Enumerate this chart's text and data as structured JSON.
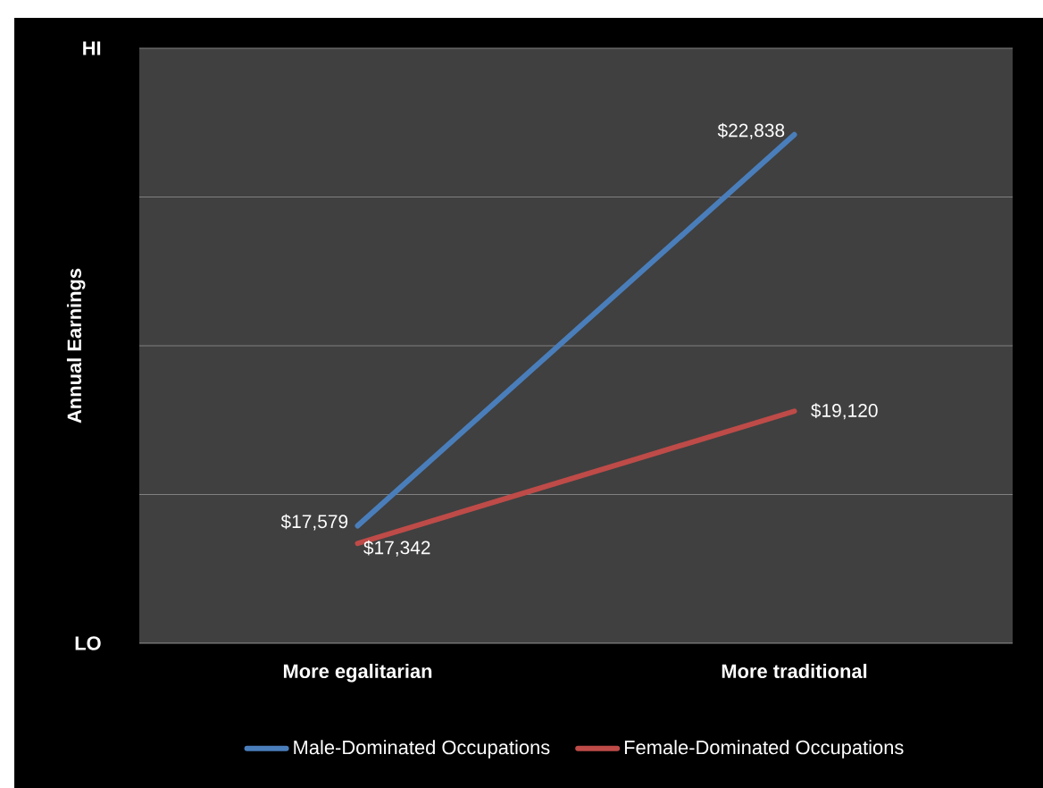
{
  "chart_data": {
    "type": "line",
    "ylabel": "Annual Earnings",
    "categories": [
      "More egalitarian",
      "More traditional"
    ],
    "ylim": [
      16000,
      24000
    ],
    "yticks": [
      {
        "value": 16000,
        "label": null
      },
      {
        "value": 18000,
        "label": null
      },
      {
        "value": 20000,
        "label": null
      },
      {
        "value": 22000,
        "label": null
      },
      {
        "value": 24000,
        "label": null
      }
    ],
    "annotations": [
      "HI",
      "LO"
    ],
    "grid": "y",
    "legend": "bottom",
    "marker": "none",
    "line_style": "solid",
    "series": [
      {
        "name": "Male-Dominated Occupations",
        "color": "#4a7ebb",
        "values": [
          17579,
          22838
        ],
        "value_labels": [
          "$17,579",
          "$22,838"
        ]
      },
      {
        "name": "Female-Dominated Occupations",
        "color": "#be4b48",
        "values": [
          17342,
          19120
        ],
        "value_labels": [
          "$17,342",
          "$19,120"
        ]
      }
    ]
  }
}
